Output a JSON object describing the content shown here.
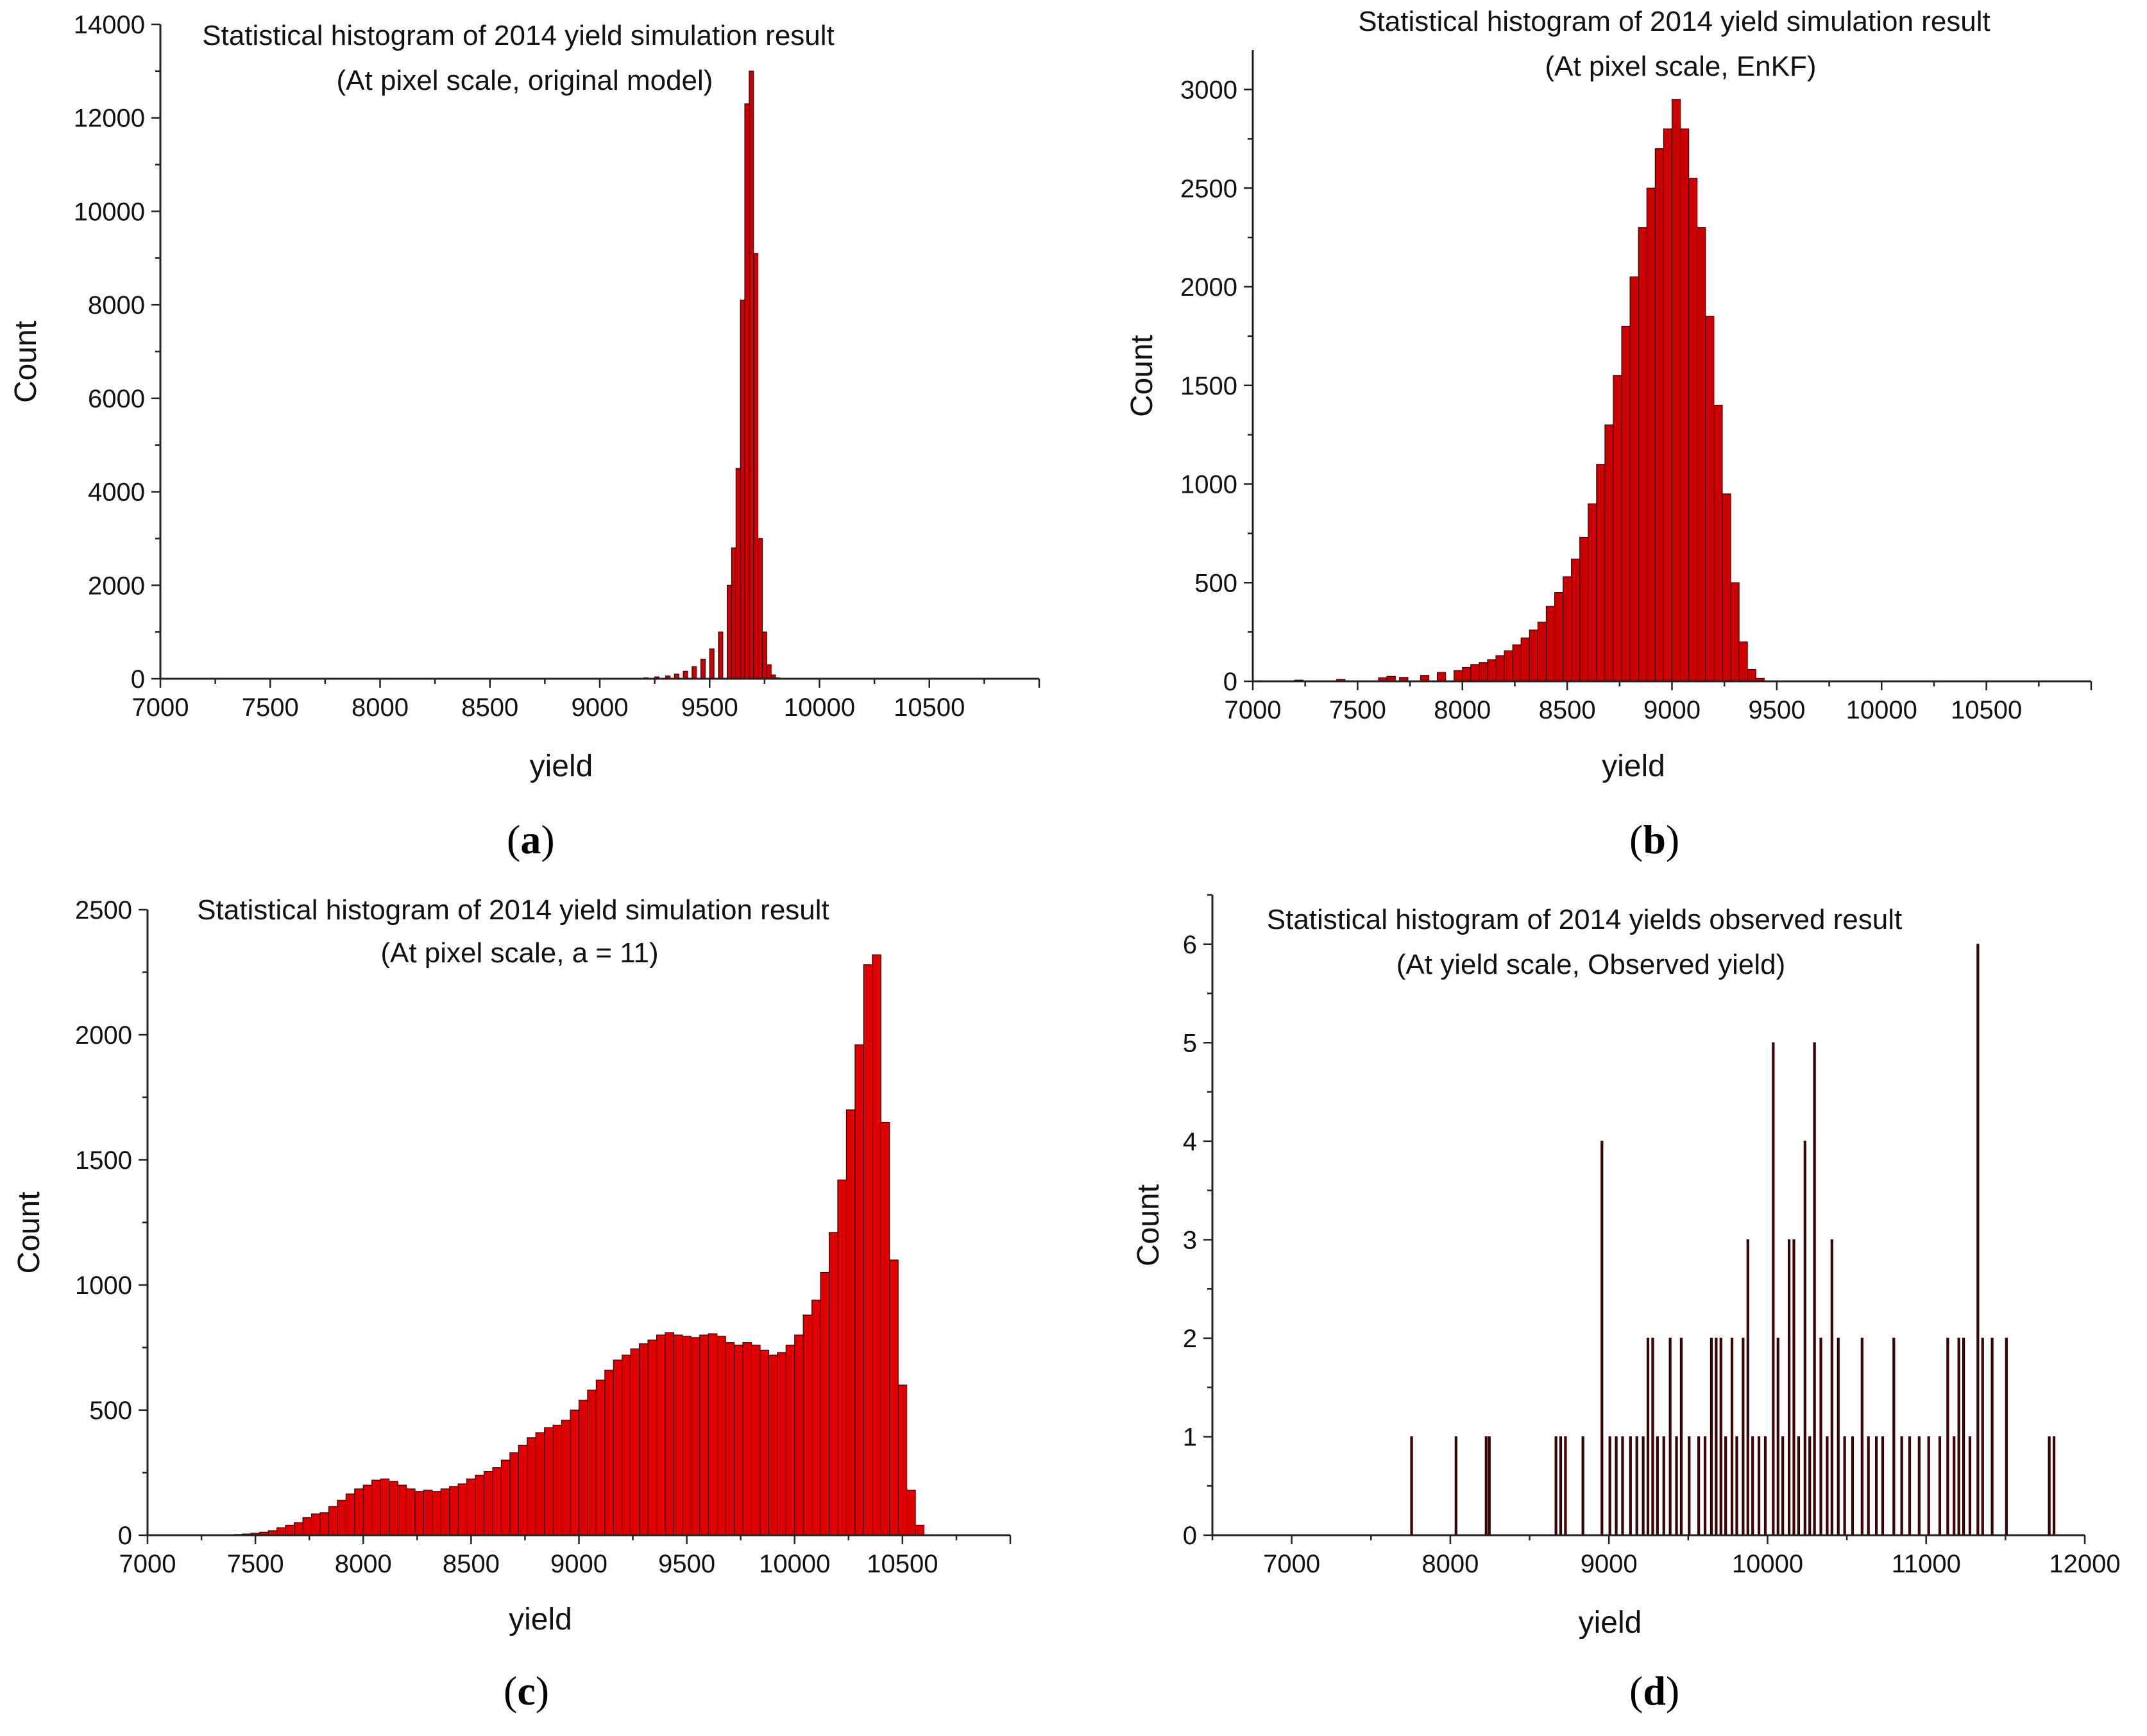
{
  "chart_data": [
    {
      "id": "a",
      "type": "bar",
      "panel_label": "a",
      "title": "Statistical histogram of 2014 yield simulation result",
      "subtitle": "(At pixel scale, original model)",
      "xlabel": "yield",
      "ylabel": "Count",
      "xlim": [
        7000,
        11000
      ],
      "ylim": [
        0,
        14000
      ],
      "xticks": [
        7000,
        7500,
        8000,
        8500,
        9000,
        9500,
        10000,
        10500
      ],
      "yticks": [
        0,
        2000,
        4000,
        6000,
        8000,
        10000,
        12000,
        14000
      ],
      "bin_width": 20,
      "bar_color": "#cc0000",
      "bins": [
        [
          9200,
          20
        ],
        [
          9250,
          40
        ],
        [
          9300,
          60
        ],
        [
          9340,
          100
        ],
        [
          9380,
          160
        ],
        [
          9420,
          260
        ],
        [
          9460,
          420
        ],
        [
          9500,
          640
        ],
        [
          9540,
          1000
        ],
        [
          9580,
          2000
        ],
        [
          9600,
          2800
        ],
        [
          9620,
          4500
        ],
        [
          9640,
          8100
        ],
        [
          9660,
          12300
        ],
        [
          9680,
          13000
        ],
        [
          9700,
          9100
        ],
        [
          9720,
          3000
        ],
        [
          9740,
          1000
        ],
        [
          9760,
          300
        ],
        [
          9780,
          80
        ],
        [
          9800,
          20
        ]
      ]
    },
    {
      "id": "b",
      "type": "bar",
      "panel_label": "b",
      "title": "Statistical histogram of 2014 yield simulation result",
      "subtitle": "(At pixel scale, EnKF)",
      "xlabel": "yield",
      "ylabel": "Count",
      "xlim": [
        7000,
        11000
      ],
      "ylim": [
        0,
        3200
      ],
      "xticks": [
        7000,
        7500,
        8000,
        8500,
        9000,
        9500,
        10000,
        10500
      ],
      "yticks": [
        0,
        500,
        1000,
        1500,
        2000,
        2500,
        3000
      ],
      "bin_width": 40,
      "bar_color": "#cc0000",
      "bins": [
        [
          7000,
          3
        ],
        [
          7200,
          6
        ],
        [
          7400,
          10
        ],
        [
          7600,
          18
        ],
        [
          7640,
          25
        ],
        [
          7700,
          20
        ],
        [
          7800,
          30
        ],
        [
          7880,
          45
        ],
        [
          7960,
          55
        ],
        [
          8000,
          70
        ],
        [
          8040,
          85
        ],
        [
          8080,
          95
        ],
        [
          8120,
          110
        ],
        [
          8160,
          130
        ],
        [
          8200,
          155
        ],
        [
          8240,
          185
        ],
        [
          8280,
          220
        ],
        [
          8320,
          260
        ],
        [
          8360,
          300
        ],
        [
          8400,
          380
        ],
        [
          8440,
          450
        ],
        [
          8480,
          530
        ],
        [
          8520,
          620
        ],
        [
          8560,
          730
        ],
        [
          8600,
          900
        ],
        [
          8640,
          1100
        ],
        [
          8680,
          1300
        ],
        [
          8720,
          1550
        ],
        [
          8760,
          1800
        ],
        [
          8800,
          2050
        ],
        [
          8840,
          2300
        ],
        [
          8880,
          2500
        ],
        [
          8920,
          2700
        ],
        [
          8960,
          2800
        ],
        [
          9000,
          2950
        ],
        [
          9040,
          2800
        ],
        [
          9080,
          2550
        ],
        [
          9120,
          2300
        ],
        [
          9160,
          1850
        ],
        [
          9200,
          1400
        ],
        [
          9240,
          950
        ],
        [
          9280,
          500
        ],
        [
          9320,
          200
        ],
        [
          9360,
          60
        ],
        [
          9400,
          15
        ]
      ]
    },
    {
      "id": "c",
      "type": "bar",
      "panel_label": "c",
      "title": "Statistical histogram of 2014 yield simulation result",
      "subtitle": "(At pixel scale, a = 11)",
      "xlabel": "yield",
      "ylabel": "Count",
      "xlim": [
        7000,
        11000
      ],
      "ylim": [
        0,
        2500
      ],
      "xticks": [
        7000,
        7500,
        8000,
        8500,
        9000,
        9500,
        10000,
        10500
      ],
      "yticks": [
        0,
        500,
        1000,
        1500,
        2000,
        2500
      ],
      "bin_width": 40,
      "bar_color": "#e00000",
      "bins": [
        [
          7400,
          3
        ],
        [
          7440,
          5
        ],
        [
          7480,
          8
        ],
        [
          7520,
          12
        ],
        [
          7560,
          18
        ],
        [
          7600,
          30
        ],
        [
          7640,
          40
        ],
        [
          7680,
          50
        ],
        [
          7720,
          70
        ],
        [
          7760,
          85
        ],
        [
          7800,
          90
        ],
        [
          7840,
          115
        ],
        [
          7880,
          140
        ],
        [
          7920,
          165
        ],
        [
          7960,
          185
        ],
        [
          8000,
          200
        ],
        [
          8040,
          220
        ],
        [
          8080,
          225
        ],
        [
          8120,
          215
        ],
        [
          8160,
          200
        ],
        [
          8200,
          185
        ],
        [
          8240,
          175
        ],
        [
          8280,
          180
        ],
        [
          8320,
          175
        ],
        [
          8360,
          185
        ],
        [
          8400,
          195
        ],
        [
          8440,
          205
        ],
        [
          8480,
          225
        ],
        [
          8520,
          240
        ],
        [
          8560,
          255
        ],
        [
          8600,
          270
        ],
        [
          8640,
          300
        ],
        [
          8680,
          330
        ],
        [
          8720,
          360
        ],
        [
          8760,
          390
        ],
        [
          8800,
          410
        ],
        [
          8840,
          430
        ],
        [
          8880,
          440
        ],
        [
          8920,
          460
        ],
        [
          8960,
          500
        ],
        [
          9000,
          540
        ],
        [
          9040,
          580
        ],
        [
          9080,
          620
        ],
        [
          9120,
          660
        ],
        [
          9160,
          700
        ],
        [
          9200,
          720
        ],
        [
          9240,
          745
        ],
        [
          9280,
          765
        ],
        [
          9320,
          780
        ],
        [
          9360,
          800
        ],
        [
          9400,
          810
        ],
        [
          9440,
          800
        ],
        [
          9480,
          795
        ],
        [
          9520,
          790
        ],
        [
          9560,
          800
        ],
        [
          9600,
          805
        ],
        [
          9640,
          795
        ],
        [
          9680,
          770
        ],
        [
          9720,
          760
        ],
        [
          9760,
          770
        ],
        [
          9800,
          760
        ],
        [
          9840,
          740
        ],
        [
          9880,
          720
        ],
        [
          9920,
          730
        ],
        [
          9960,
          760
        ],
        [
          10000,
          800
        ],
        [
          10040,
          880
        ],
        [
          10080,
          940
        ],
        [
          10120,
          1050
        ],
        [
          10160,
          1210
        ],
        [
          10200,
          1420
        ],
        [
          10240,
          1700
        ],
        [
          10280,
          1960
        ],
        [
          10320,
          2280
        ],
        [
          10360,
          2320
        ],
        [
          10400,
          1650
        ],
        [
          10440,
          1100
        ],
        [
          10480,
          600
        ],
        [
          10520,
          180
        ],
        [
          10560,
          40
        ]
      ]
    },
    {
      "id": "d",
      "type": "bar",
      "panel_label": "d",
      "title": "Statistical histogram of 2014 yields observed result",
      "subtitle": "(At yield scale, Observed yield)",
      "xlabel": "yield",
      "ylabel": "Count",
      "xlim": [
        6500,
        12000
      ],
      "ylim": [
        0,
        6.5
      ],
      "xticks": [
        7000,
        8000,
        9000,
        10000,
        11000,
        12000
      ],
      "yticks": [
        0,
        1,
        2,
        3,
        4,
        5,
        6
      ],
      "bin_width": 12,
      "bar_color": "#5a0000",
      "bins": [
        [
          7750,
          1
        ],
        [
          8030,
          1
        ],
        [
          8220,
          1
        ],
        [
          8240,
          1
        ],
        [
          8660,
          1
        ],
        [
          8690,
          1
        ],
        [
          8720,
          1
        ],
        [
          8830,
          1
        ],
        [
          8950,
          4
        ],
        [
          9000,
          1
        ],
        [
          9040,
          1
        ],
        [
          9080,
          1
        ],
        [
          9130,
          1
        ],
        [
          9170,
          1
        ],
        [
          9210,
          1
        ],
        [
          9240,
          2
        ],
        [
          9270,
          2
        ],
        [
          9300,
          1
        ],
        [
          9340,
          1
        ],
        [
          9380,
          2
        ],
        [
          9420,
          1
        ],
        [
          9450,
          2
        ],
        [
          9500,
          1
        ],
        [
          9560,
          1
        ],
        [
          9600,
          1
        ],
        [
          9640,
          2
        ],
        [
          9670,
          2
        ],
        [
          9700,
          2
        ],
        [
          9730,
          1
        ],
        [
          9770,
          2
        ],
        [
          9800,
          1
        ],
        [
          9840,
          2
        ],
        [
          9870,
          3
        ],
        [
          9900,
          1
        ],
        [
          9940,
          1
        ],
        [
          9980,
          1
        ],
        [
          10030,
          5
        ],
        [
          10060,
          2
        ],
        [
          10090,
          1
        ],
        [
          10130,
          3
        ],
        [
          10160,
          3
        ],
        [
          10190,
          1
        ],
        [
          10230,
          4
        ],
        [
          10260,
          1
        ],
        [
          10290,
          5
        ],
        [
          10330,
          2
        ],
        [
          10370,
          1
        ],
        [
          10400,
          3
        ],
        [
          10440,
          2
        ],
        [
          10480,
          1
        ],
        [
          10530,
          1
        ],
        [
          10590,
          2
        ],
        [
          10630,
          1
        ],
        [
          10680,
          1
        ],
        [
          10720,
          1
        ],
        [
          10790,
          2
        ],
        [
          10840,
          1
        ],
        [
          10890,
          1
        ],
        [
          10950,
          1
        ],
        [
          11010,
          1
        ],
        [
          11080,
          1
        ],
        [
          11130,
          2
        ],
        [
          11170,
          1
        ],
        [
          11200,
          2
        ],
        [
          11230,
          2
        ],
        [
          11270,
          1
        ],
        [
          11320,
          6
        ],
        [
          11350,
          2
        ],
        [
          11410,
          2
        ],
        [
          11500,
          2
        ],
        [
          11770,
          1
        ],
        [
          11800,
          1
        ]
      ]
    }
  ]
}
